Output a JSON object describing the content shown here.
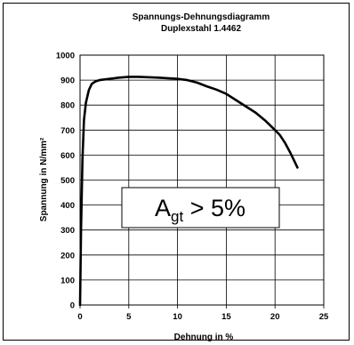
{
  "chart_data": {
    "type": "line",
    "title": "Spannungs-Dehnungsdiagramm",
    "subtitle": "Duplexstahl 1.4462",
    "xlabel": "Dehnung in %",
    "ylabel": "Spannung in N/mm²",
    "xlim": [
      0,
      25
    ],
    "ylim": [
      0,
      1000
    ],
    "xticks": [
      0,
      5,
      10,
      15,
      20,
      25
    ],
    "yticks": [
      0,
      100,
      200,
      300,
      400,
      500,
      600,
      700,
      800,
      900,
      1000
    ],
    "grid": true,
    "series": [
      {
        "x": [
          0,
          0.1,
          0.25,
          0.4,
          0.6,
          0.9,
          1.2,
          1.6,
          2.0,
          3.0,
          4.0,
          5.0,
          6.0,
          8.0,
          10.0,
          11.0,
          12.0,
          13.0,
          14.0,
          15.0,
          16.0,
          17.0,
          18.0,
          19.0,
          20.0,
          20.5,
          21.0,
          21.5,
          22.0,
          22.3
        ],
        "values": [
          0,
          300,
          580,
          740,
          810,
          860,
          885,
          895,
          900,
          905,
          910,
          913,
          913,
          910,
          905,
          900,
          890,
          875,
          862,
          845,
          820,
          795,
          770,
          738,
          700,
          680,
          650,
          615,
          575,
          550
        ]
      }
    ],
    "annotations": [
      {
        "text_main": "A",
        "text_sub": "gt",
        "text_rest": " > 5%"
      }
    ]
  }
}
